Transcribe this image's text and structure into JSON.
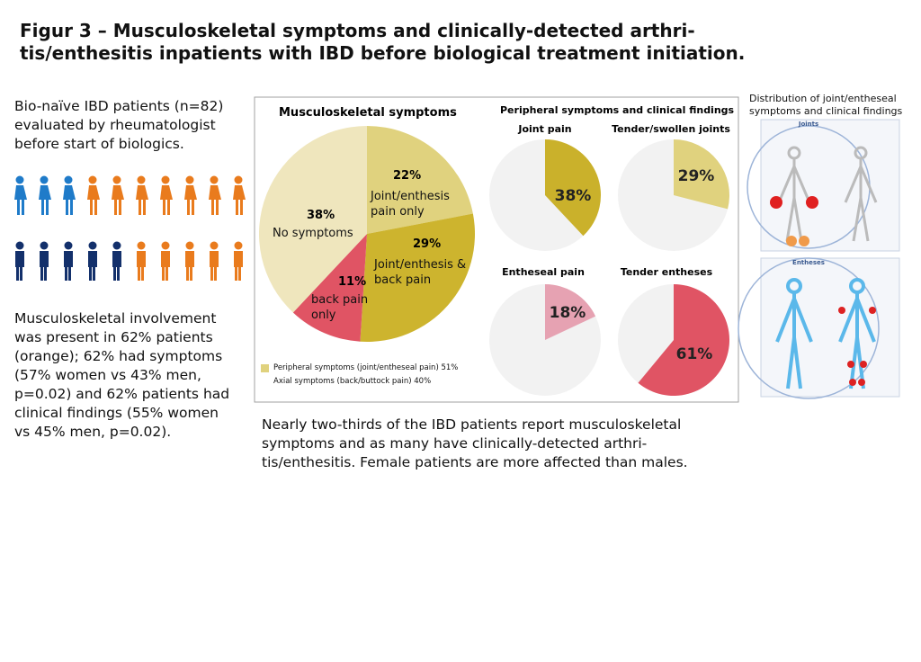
{
  "title": [
    "Figur 3 – Musculoskeletal symptoms and clinically-detected arthri-",
    "tis/enthesitis inpatients with IBD before biological treatment initiation."
  ],
  "intro": [
    "Bio-naïve IBD patients (n=82)",
    "evaluated by rheumatologist",
    "before start of biologics."
  ],
  "pictogram": [
    {
      "color": "#1f7bc9",
      "count": 3
    },
    {
      "color": "#e97b1d",
      "count": 7
    },
    {
      "color": "#13306b",
      "count": 5
    },
    {
      "color": "#e97b1d",
      "count": 5
    }
  ],
  "findings": [
    "Musculoskeletal involvement",
    "was present in 62% patients",
    "(orange); 62% had symptoms",
    "(57% women vs 43% men,",
    "p=0.02) and 62% patients had",
    "clinical findings (55% women",
    "vs 45% men, p=0.02)."
  ],
  "conclusion": [
    "Nearly two-thirds of the IBD patients report musculoskeletal",
    "symptoms and as many have clinically-detected arthri-",
    "tis/enthesitis. Female patients are more affected than males."
  ],
  "panel_title": "Peripheral symptoms and clinical findings",
  "chart_data": [
    {
      "type": "pie",
      "title": "Musculoskeletal symptoms",
      "categories": [
        "Joint/enthesis pain only",
        "Joint/enthesis & back pain",
        "back pain only",
        "No symptoms"
      ],
      "values": [
        22,
        29,
        11,
        38
      ],
      "value_labels": [
        "22%",
        "29%",
        "11%",
        "38%"
      ],
      "colors": [
        "#e0d27e",
        "#cdb42e",
        "#e05464",
        "#efe6bd"
      ],
      "legend": [
        {
          "text": "Peripheral symptoms (joint/entheseal pain) 51%",
          "color": "#e0d27e"
        },
        {
          "text": "Axial symptoms (back/buttock pain) 40%",
          "color": null
        }
      ]
    },
    {
      "type": "pie",
      "title": "Joint pain",
      "values": [
        38
      ],
      "value_labels": [
        "38%"
      ],
      "colors": [
        "#cab12b"
      ]
    },
    {
      "type": "pie",
      "title": "Tender/swollen joints",
      "values": [
        29
      ],
      "value_labels": [
        "29%"
      ],
      "colors": [
        "#e0d27e"
      ]
    },
    {
      "type": "pie",
      "title": "Entheseal pain",
      "values": [
        18
      ],
      "value_labels": [
        "18%"
      ],
      "colors": [
        "#e6a2b2"
      ]
    },
    {
      "type": "pie",
      "title": "Tender entheses",
      "values": [
        61
      ],
      "value_labels": [
        "61%"
      ],
      "colors": [
        "#e05464"
      ]
    }
  ],
  "figure": {
    "caption": [
      "Distribution of joint/entheseal",
      "symptoms and clinical findings"
    ],
    "labels": [
      "Joints",
      "Entheses"
    ]
  }
}
